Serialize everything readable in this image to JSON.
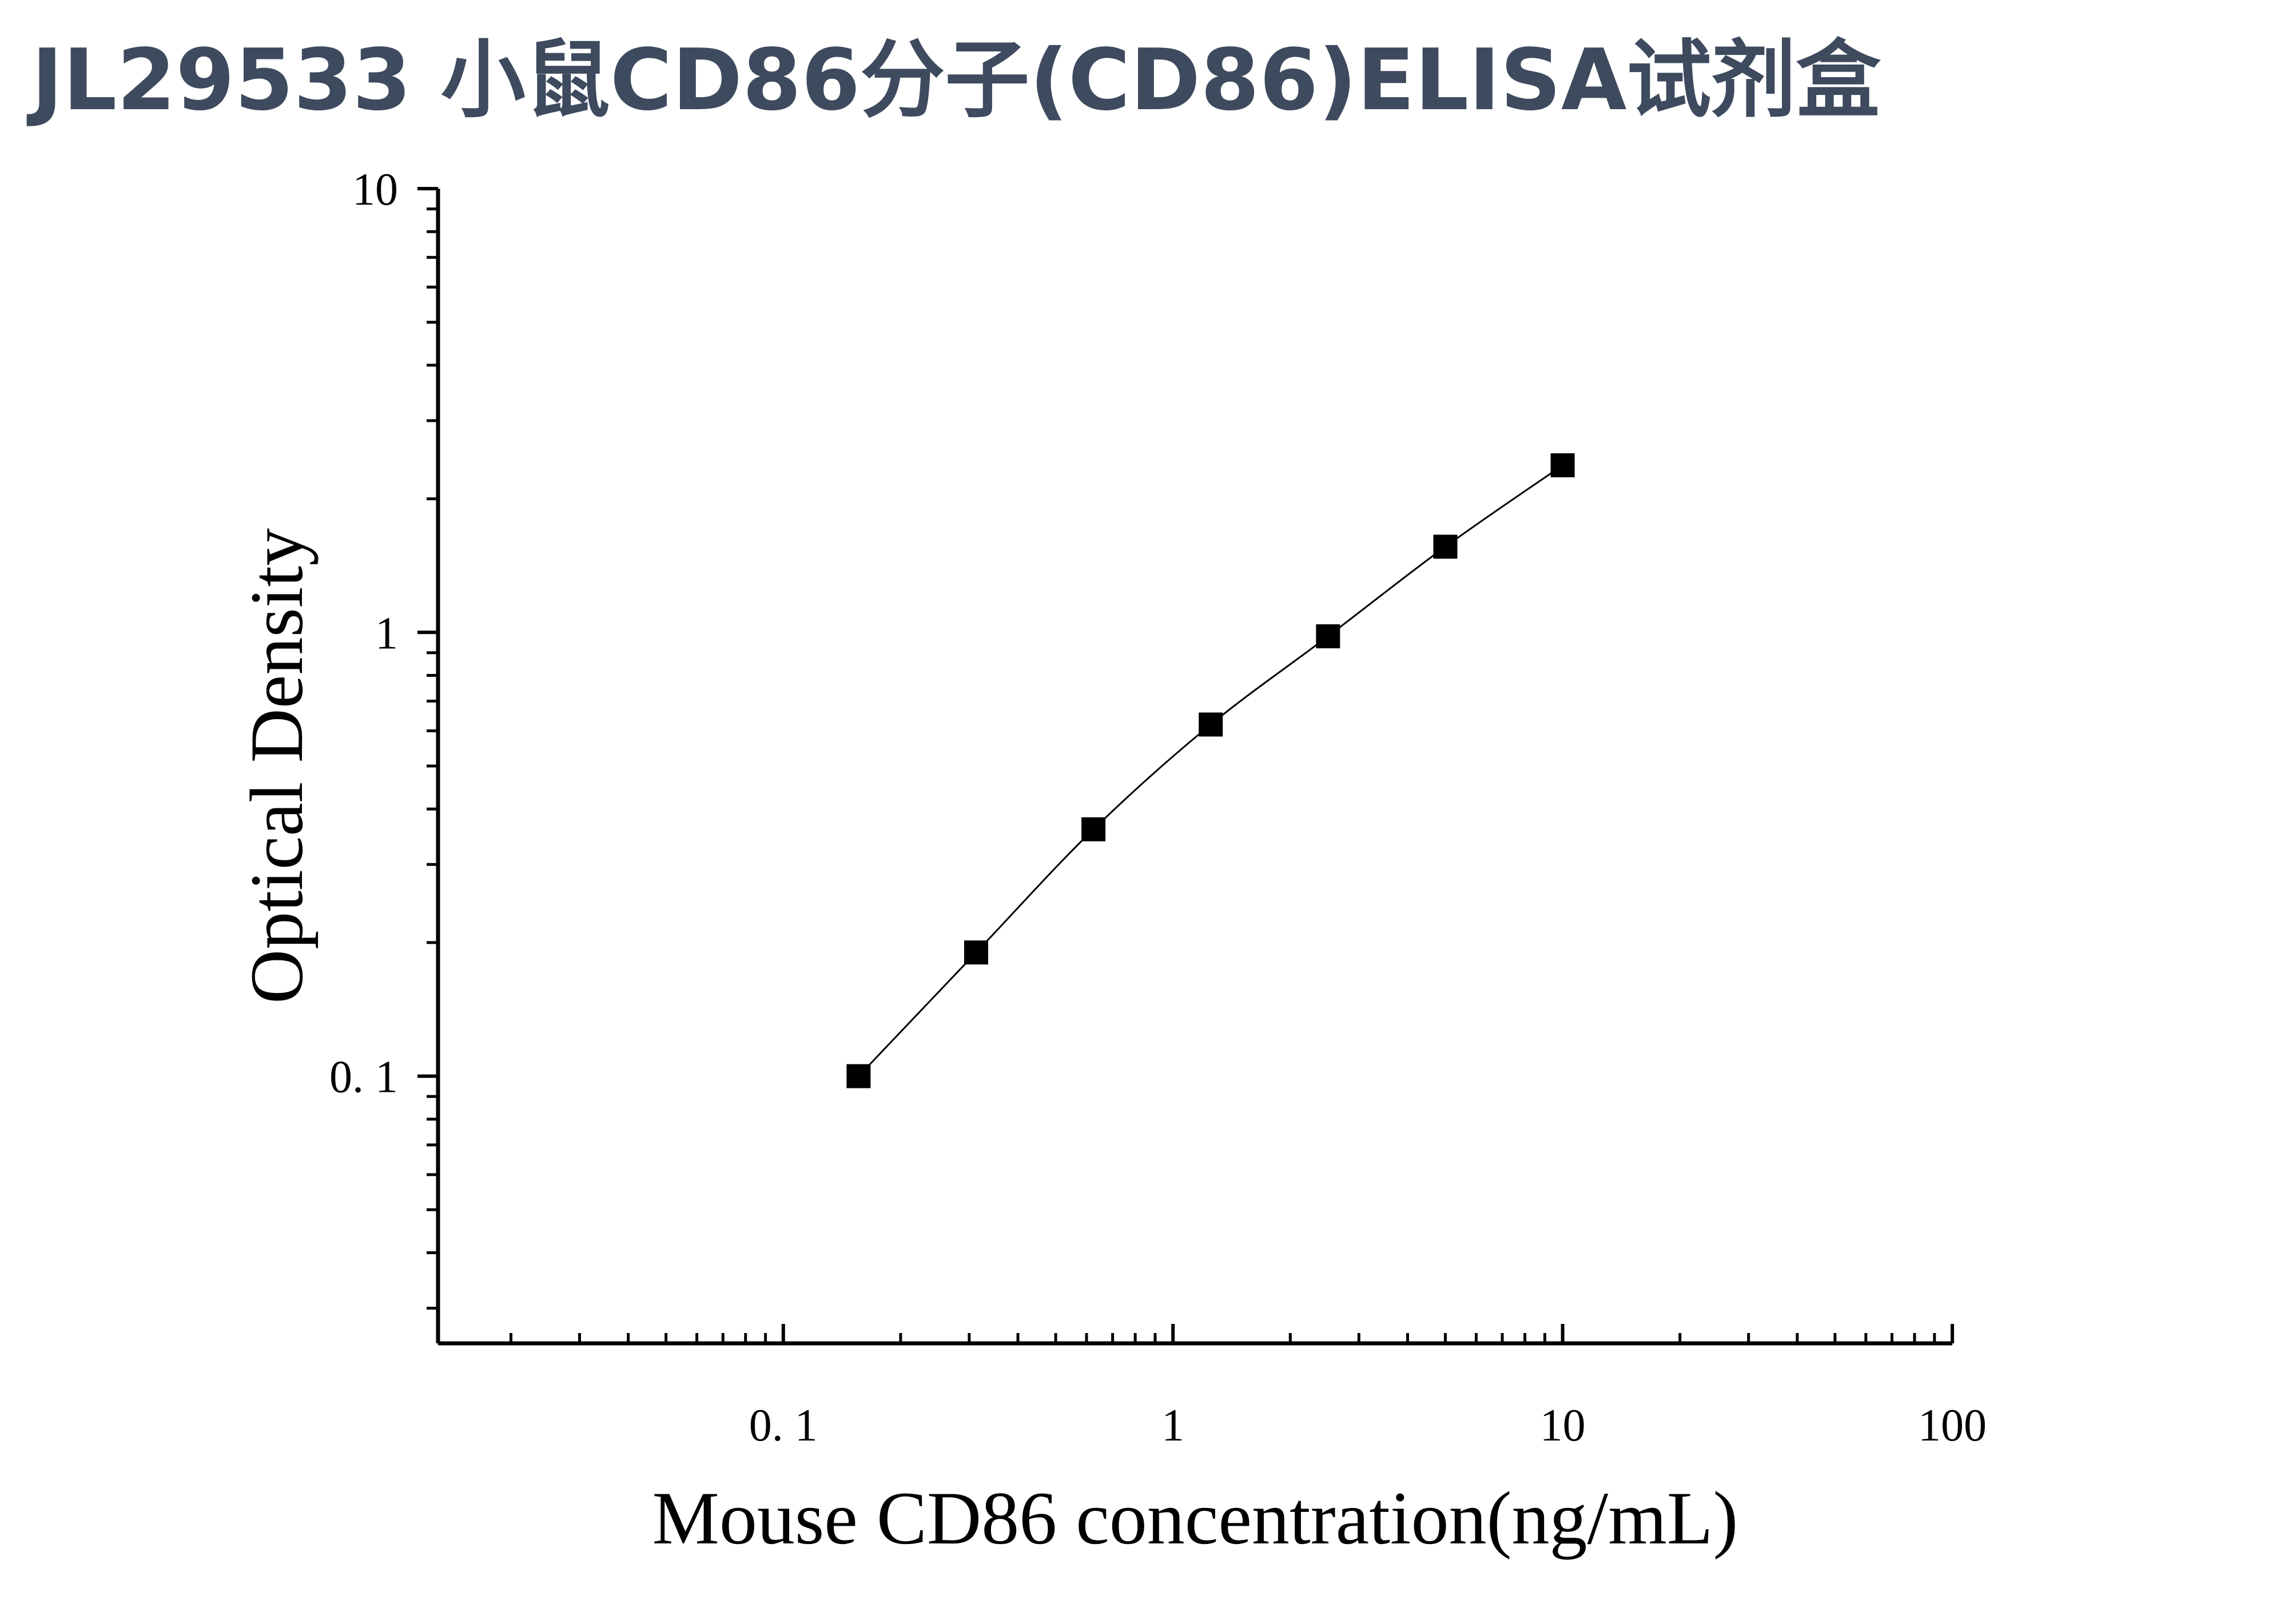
{
  "title": "JL29533 小鼠CD86分子(CD86)ELISA试剂盒",
  "chart_data": {
    "type": "scatter",
    "title": "JL29533 小鼠CD86分子(CD86)ELISA试剂盒",
    "xlabel": "Mouse CD86 concentration(ng/mL)",
    "ylabel": "Optical Density",
    "x_scale": "log",
    "y_scale": "log",
    "xlim": [
      0.013,
      100
    ],
    "ylim": [
      0.025,
      10
    ],
    "x_ticks": [
      0.1,
      1,
      10,
      100
    ],
    "x_tick_labels": [
      "0. 1",
      "1",
      "10",
      "100"
    ],
    "y_ticks": [
      0.1,
      1,
      10
    ],
    "y_tick_labels": [
      "0. 1",
      "1",
      "10"
    ],
    "grid": false,
    "legend": "none",
    "marker": "square",
    "fit_curve": true,
    "colors": {
      "title": "#3e4a5e",
      "marks": "#000000"
    },
    "series": [
      {
        "x": [
          0.156,
          0.3125,
          0.625,
          1.25,
          2.5,
          5,
          10
        ],
        "y": [
          0.1,
          0.19,
          0.36,
          0.62,
          0.98,
          1.56,
          2.38
        ]
      }
    ]
  }
}
